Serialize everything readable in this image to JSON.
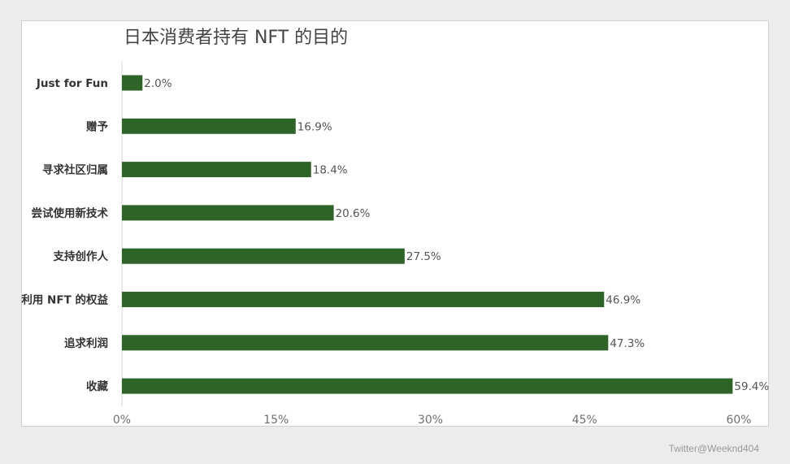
{
  "chart_data": {
    "type": "bar",
    "orientation": "horizontal",
    "title": "日本消费者持有 NFT 的目的",
    "xlabel": "",
    "ylabel": "",
    "categories": [
      "Just for Fun",
      "赠予",
      "寻求社区归属",
      "尝试使用新技术",
      "支持创作人",
      "利用 NFT 的权益",
      "追求利润",
      "收藏"
    ],
    "values": [
      2.0,
      16.9,
      18.4,
      20.6,
      27.5,
      46.9,
      47.3,
      59.4
    ],
    "value_labels": [
      "2.0%",
      "16.9%",
      "18.4%",
      "20.6%",
      "27.5%",
      "46.9%",
      "47.3%",
      "59.4%"
    ],
    "xlim": [
      0,
      60
    ],
    "xticks": [
      0,
      15,
      30,
      45,
      60
    ],
    "xtick_labels": [
      "0%",
      "15%",
      "30%",
      "45%",
      "60%"
    ],
    "grid": false,
    "legend": "none",
    "bar_color": "#2f6428"
  },
  "watermark": "Twitter@Weeknd404"
}
